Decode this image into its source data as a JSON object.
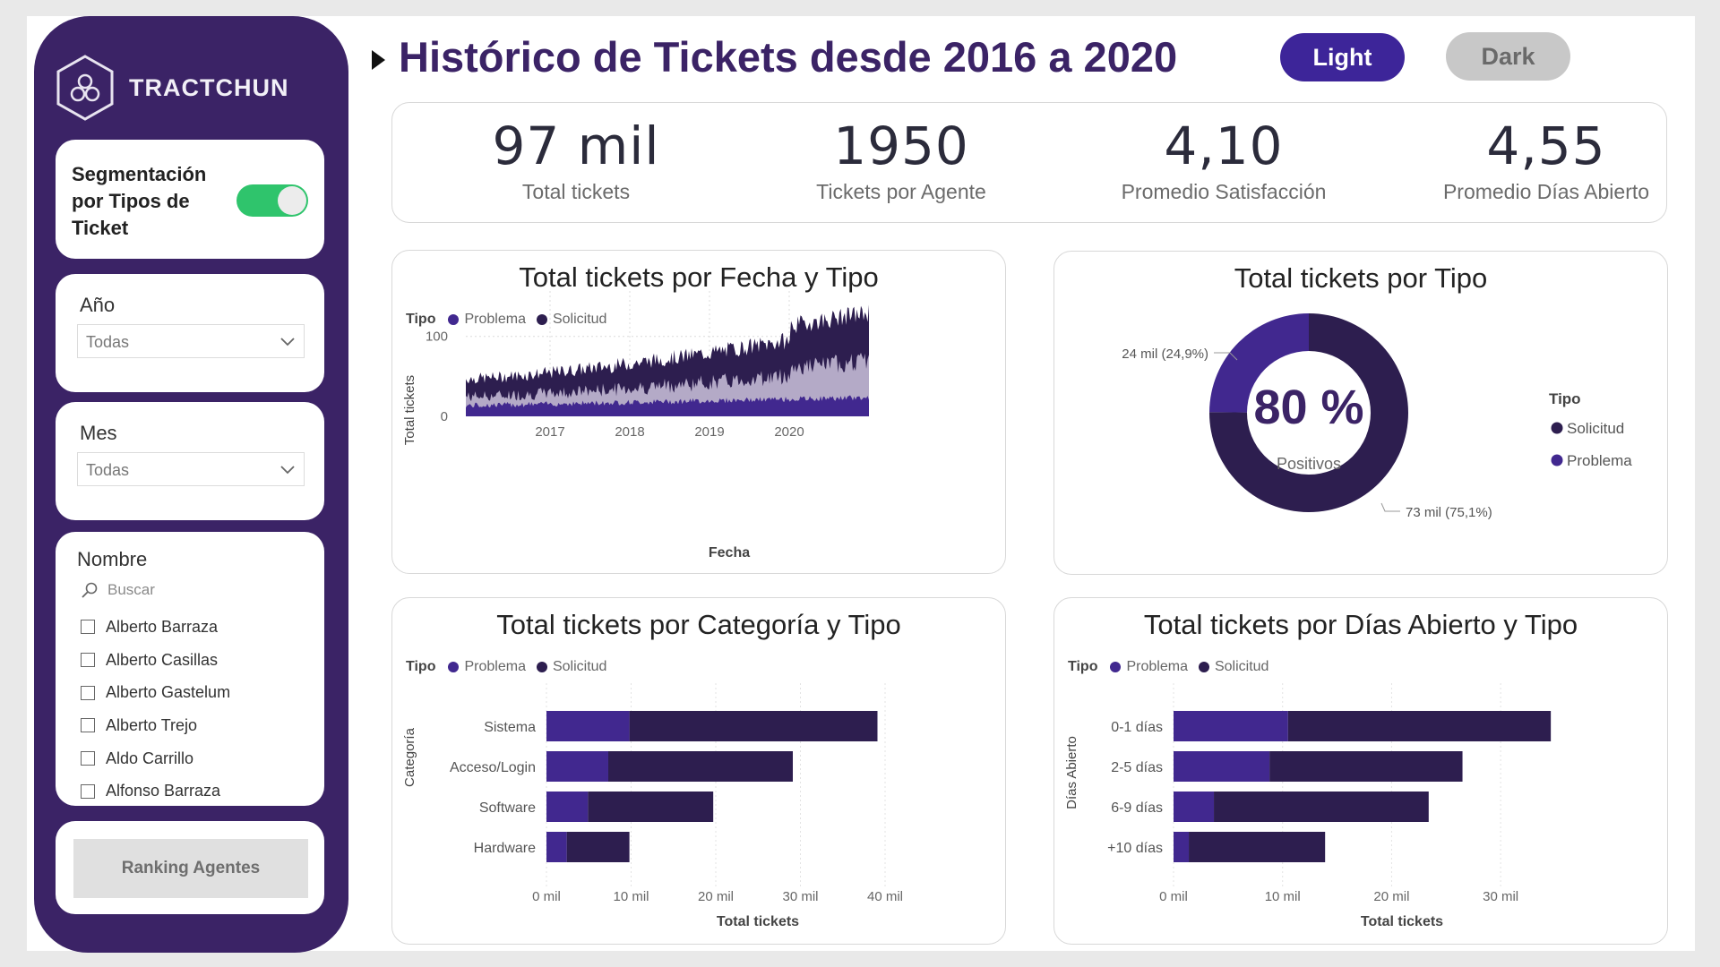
{
  "colors": {
    "primary": "#3b2366",
    "problema": "#41288f",
    "solicitud": "#2d1e4f",
    "light_area": "#b4aac7",
    "accent_green": "#2fc46c"
  },
  "sidebar": {
    "logo_text": "TRACTCHUN",
    "segmentation_label": "Segmentación por Tipos de Ticket",
    "toggle_on": true,
    "year": {
      "title": "Año",
      "value": "Todas"
    },
    "month": {
      "title": "Mes",
      "value": "Todas"
    },
    "name": {
      "title": "Nombre",
      "search_placeholder": "Buscar",
      "items": [
        "Alberto Barraza",
        "Alberto Casillas",
        "Alberto Gastelum",
        "Alberto Trejo",
        "Aldo Carrillo",
        "Alfonso Barraza"
      ]
    },
    "ranking_button": "Ranking Agentes"
  },
  "header": {
    "title": "Histórico de Tickets desde 2016 a 2020",
    "light_label": "Light",
    "dark_label": "Dark"
  },
  "kpis": [
    {
      "value": "97 mil",
      "label": "Total tickets"
    },
    {
      "value": "1950",
      "label": "Tickets por Agente"
    },
    {
      "value": "4,10",
      "label": "Promedio Satisfacción"
    },
    {
      "value": "4,55",
      "label": "Promedio Días Abierto"
    }
  ],
  "legend": {
    "title": "Tipo",
    "problema": "Problema",
    "solicitud": "Solicitud"
  },
  "chart_data": [
    {
      "type": "area",
      "title": "Total tickets por Fecha y Tipo",
      "xlabel": "Fecha",
      "ylabel": "Total tickets",
      "x_ticks": [
        "2017",
        "2018",
        "2019",
        "2020"
      ],
      "y_ticks": [
        "0",
        "100"
      ],
      "ylim": [
        0,
        140
      ],
      "x_range": [
        "2016",
        "2020"
      ],
      "series": [
        {
          "name": "Problema",
          "approx_level_start": 10,
          "approx_level_end": 20
        },
        {
          "name": "Solicitud",
          "approx_level_start": 40,
          "approx_level_end": 100
        }
      ],
      "legend_position": "top-left"
    },
    {
      "type": "pie",
      "title": "Total tickets por Tipo",
      "center_value": "80 %",
      "center_label": "Positivos",
      "legend_title": "Tipo",
      "slices": [
        {
          "name": "Solicitud",
          "value": 73,
          "label": "73 mil (75,1%)",
          "percent": 75.1
        },
        {
          "name": "Problema",
          "value": 24,
          "label": "24 mil (24,9%)",
          "percent": 24.9
        }
      ],
      "legend_position": "right"
    },
    {
      "type": "bar",
      "orientation": "horizontal",
      "stacked": true,
      "title": "Total tickets por Categoría y Tipo",
      "xlabel": "Total tickets",
      "ylabel": "Categoría",
      "categories": [
        "Sistema",
        "Acceso/Login",
        "Software",
        "Hardware"
      ],
      "series": [
        {
          "name": "Problema",
          "values": [
            9.8,
            7.3,
            4.9,
            2.4
          ]
        },
        {
          "name": "Solicitud",
          "values": [
            29.3,
            21.8,
            14.8,
            7.4
          ]
        }
      ],
      "xlim": [
        0,
        40
      ],
      "x_ticks": [
        "0 mil",
        "10 mil",
        "20 mil",
        "30 mil",
        "40 mil"
      ]
    },
    {
      "type": "bar",
      "orientation": "horizontal",
      "stacked": true,
      "title": "Total tickets por Días Abierto y Tipo",
      "xlabel": "Total tickets",
      "ylabel": "Días Abierto",
      "categories": [
        "0-1 días",
        "2-5 días",
        "6-9 días",
        "+10 días"
      ],
      "series": [
        {
          "name": "Problema",
          "values": [
            10.5,
            8.8,
            3.7,
            1.4
          ]
        },
        {
          "name": "Solicitud",
          "values": [
            24.1,
            17.7,
            19.7,
            12.5
          ]
        }
      ],
      "xlim": [
        0,
        35
      ],
      "x_ticks": [
        "0 mil",
        "10 mil",
        "20 mil",
        "30 mil"
      ]
    }
  ]
}
